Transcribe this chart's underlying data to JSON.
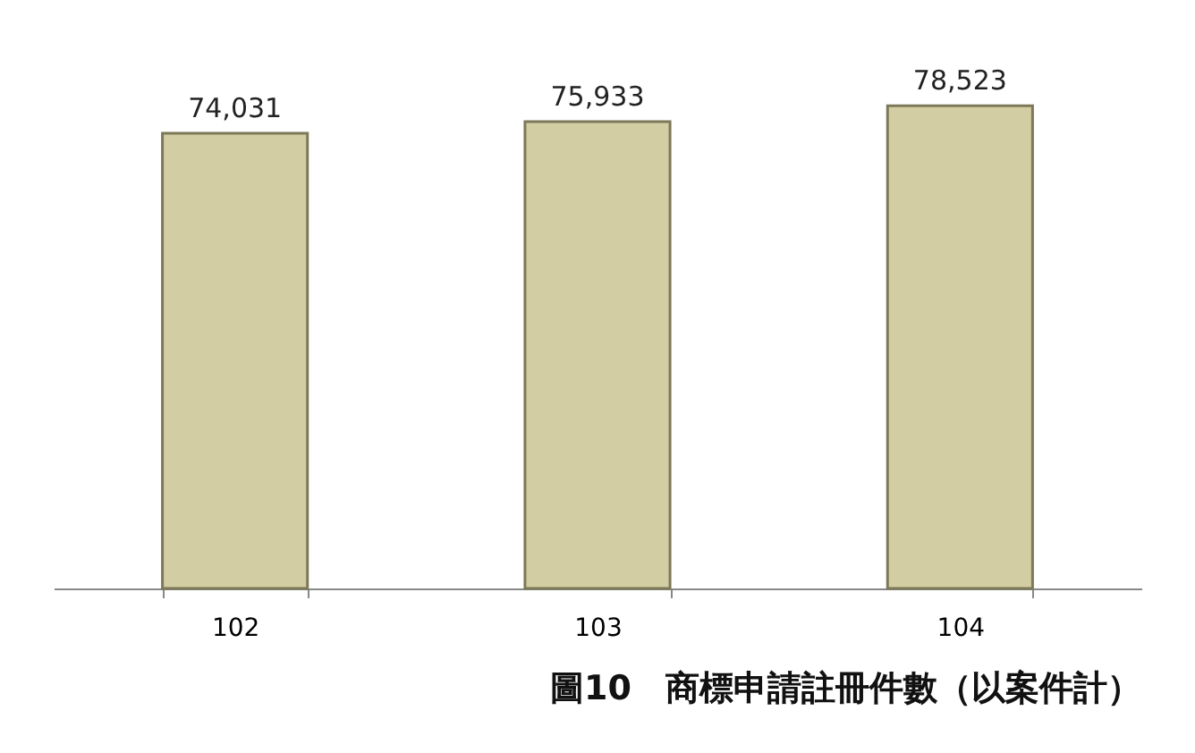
{
  "chart_data": {
    "type": "bar",
    "title": "圖10　商標申請註冊件數（以案件計）",
    "categories": [
      "102",
      "103",
      "104"
    ],
    "values": [
      74031,
      75933,
      78523
    ],
    "color": "#d3cda3",
    "value_labels": [
      "74,031",
      "75,933",
      "78,523"
    ],
    "grid": false,
    "tick_labels": "x"
  }
}
